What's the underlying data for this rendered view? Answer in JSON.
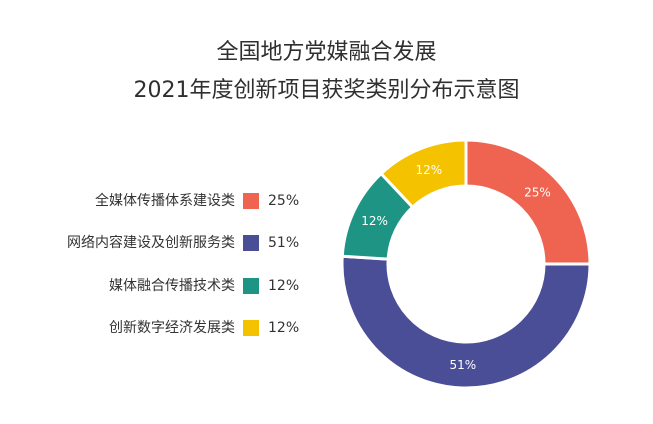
{
  "title_line1": "全国地方党媒融合发展",
  "title_line2": "2021年度创新项目获奖类别分布示意图",
  "chart_data": {
    "type": "pie",
    "donut": true,
    "title": "全国地方党媒融合发展 2021年度创新项目获奖类别分布示意图",
    "categories": [
      "全媒体传播体系建设类",
      "网络内容建设及创新服务类",
      "媒体融合传播技术类",
      "创新数字经济发展类"
    ],
    "values": [
      25,
      51,
      12,
      12
    ],
    "value_labels": [
      "25%",
      "51%",
      "12%",
      "12%"
    ],
    "colors": [
      "#EF6450",
      "#4A4E96",
      "#1E9584",
      "#F5C200"
    ],
    "legend_position": "left"
  }
}
